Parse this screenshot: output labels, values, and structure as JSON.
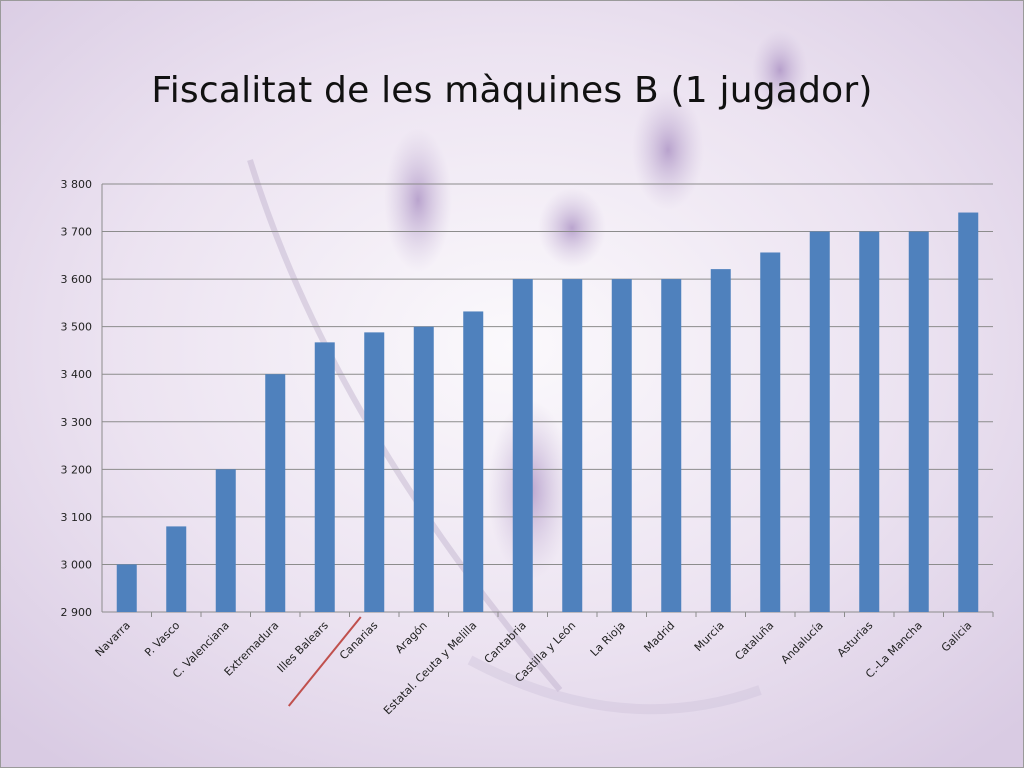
{
  "slide": {
    "title": "Fiscalitat de les màquines B (1 jugador)"
  },
  "chart_data": {
    "type": "bar",
    "title": "",
    "xlabel": "",
    "ylabel": "",
    "ylim": [
      2900,
      3800
    ],
    "ytick_step": 100,
    "ytick_labels": [
      "2 900",
      "3 000",
      "3 100",
      "3 200",
      "3 300",
      "3 400",
      "3 500",
      "3 600",
      "3 700",
      "3 800"
    ],
    "grid": true,
    "legend": "none",
    "bar_color": "#4f81bd",
    "categories": [
      "Navarra",
      "P. Vasco",
      "C. Valenciana",
      "Extremadura",
      "Illes Balears",
      "Canarias",
      "Aragón",
      "Estatal. Ceuta y Melilla",
      "Cantabria",
      "Castilla y León",
      "La Rioja",
      "Madrid",
      "Murcia",
      "Cataluña",
      "Andalucía",
      "Asturias",
      "C.-La Mancha",
      "Galicia"
    ],
    "values": [
      3000,
      3080,
      3200,
      3400,
      3467,
      3488,
      3500,
      3532,
      3600,
      3600,
      3600,
      3600,
      3621,
      3656,
      3700,
      3700,
      3700,
      3740
    ],
    "annotations": [
      {
        "type": "underline",
        "category": "Illes Balears",
        "color": "#c0504d"
      }
    ]
  }
}
